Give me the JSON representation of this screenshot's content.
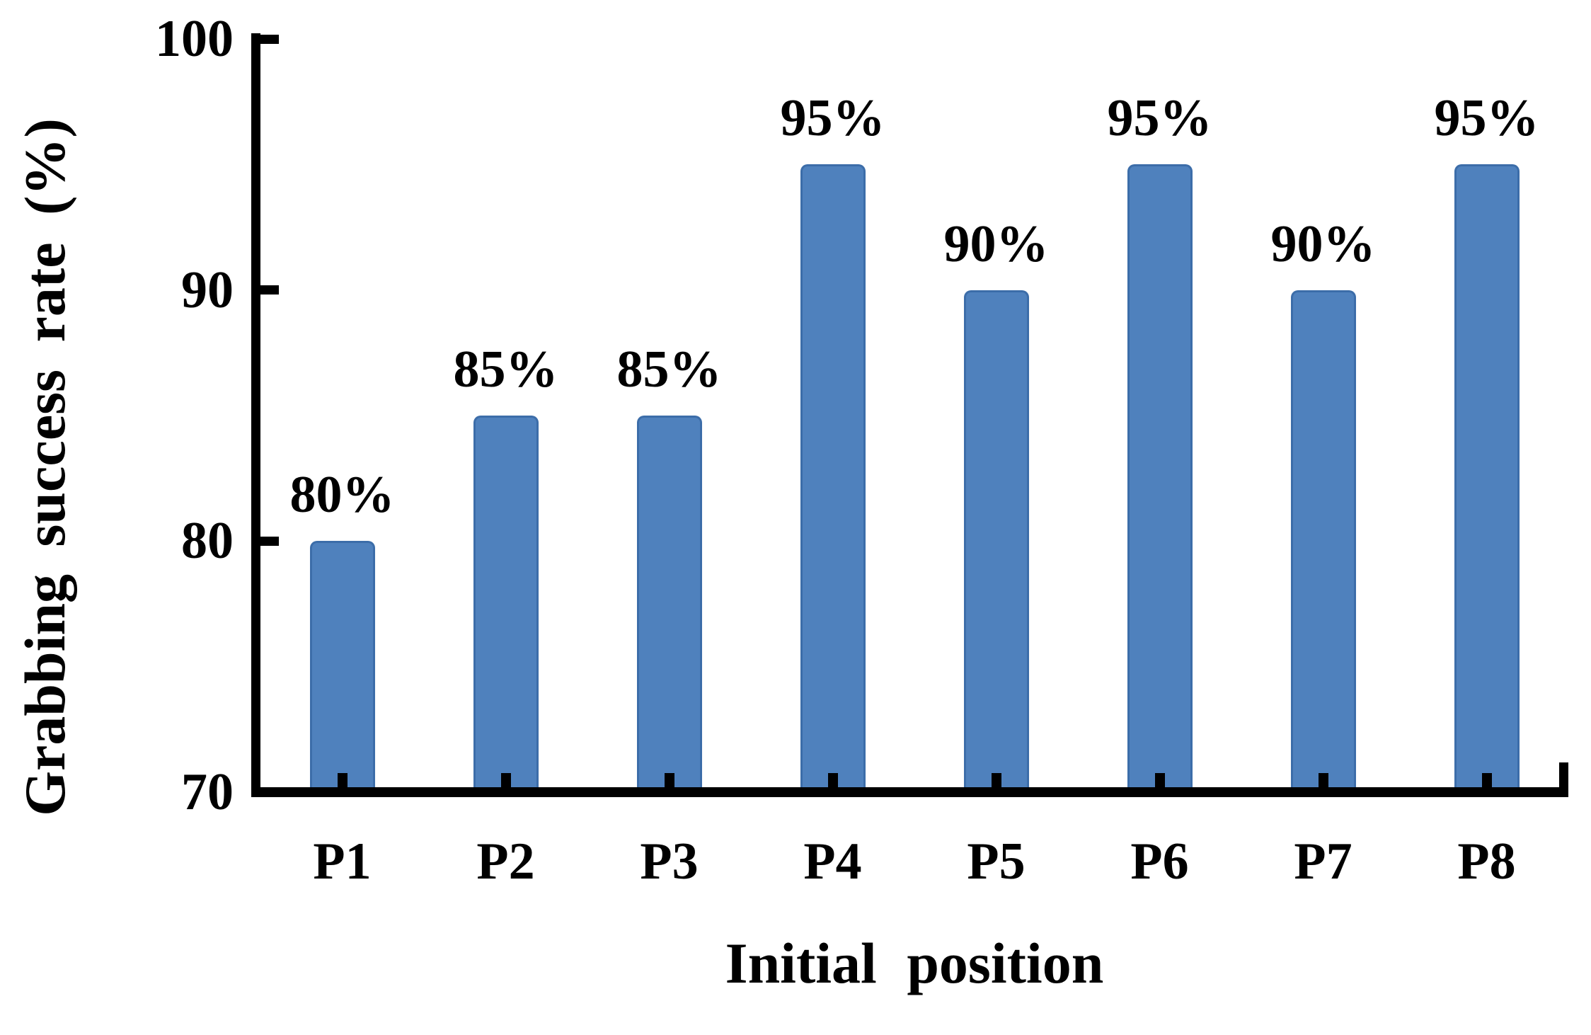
{
  "chart_data": {
    "type": "bar",
    "categories": [
      "P1",
      "P2",
      "P3",
      "P4",
      "P5",
      "P6",
      "P7",
      "P8"
    ],
    "values": [
      80,
      85,
      85,
      95,
      90,
      95,
      90,
      95
    ],
    "bar_labels": [
      "80%",
      "85%",
      "85%",
      "95%",
      "90%",
      "95%",
      "90%",
      "95%"
    ],
    "title": "",
    "xlabel": "Initial position",
    "ylabel": "Grabbing success rate（%）",
    "ylim": [
      70,
      100
    ],
    "yticks": [
      70,
      80,
      90,
      100
    ],
    "grid": false,
    "legend": false,
    "bar_color": "#4F81BD",
    "bar_border_color": "#3C6DA9",
    "axis_color": "#000000",
    "label_color": "#000000"
  }
}
